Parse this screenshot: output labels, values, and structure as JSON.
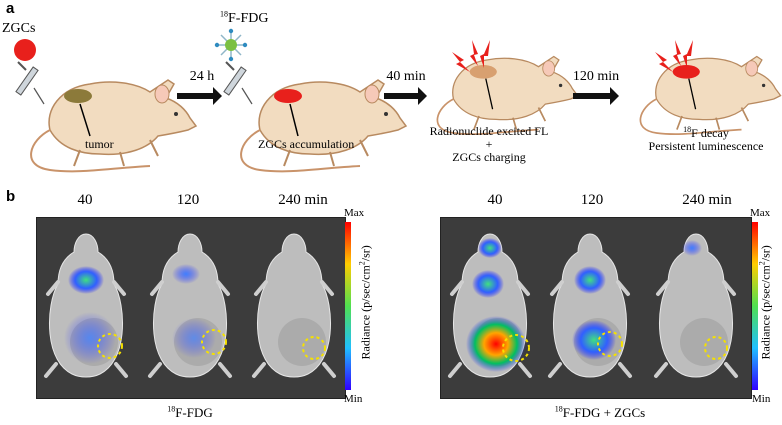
{
  "panel_a": {
    "letter": "a",
    "zgcs_label": "ZGCs",
    "fdg_label": "F-FDG",
    "fdg_sup": "18",
    "arrow1": "24 h",
    "arrow2": "40 min",
    "arrow3": "120 min",
    "tumor_label": "tumor",
    "accum_label": "ZGCs accumulation",
    "excite_line1": "Radionuclide excited FL",
    "excite_line2": "+",
    "excite_line3": "ZGCs charging",
    "decay_sup": "18",
    "decay_line1": "F decay",
    "decay_line2": "Persistent luminescence"
  },
  "panel_b": {
    "letter": "b",
    "left": {
      "times": [
        "40",
        "120",
        "240 min"
      ],
      "caption_sup": "18",
      "caption": "F-FDG"
    },
    "right": {
      "times": [
        "40",
        "120",
        "240 min"
      ],
      "caption_sup": "18",
      "caption": "F-FDG + ZGCs"
    },
    "colorbar": {
      "max": "Max",
      "min": "Min",
      "title_pre": "Radiance (p/sec/cm",
      "title_sup": "2",
      "title_post": "/sr)"
    }
  },
  "colors": {
    "nanoparticle": "#e8201c",
    "tumor_early": "#8c7a3a",
    "mouse_body": "#f2dcc0",
    "mouse_outline": "#b88a60",
    "tumor_circle": "#f5e100",
    "panel_bg": "#3c3c3c"
  }
}
